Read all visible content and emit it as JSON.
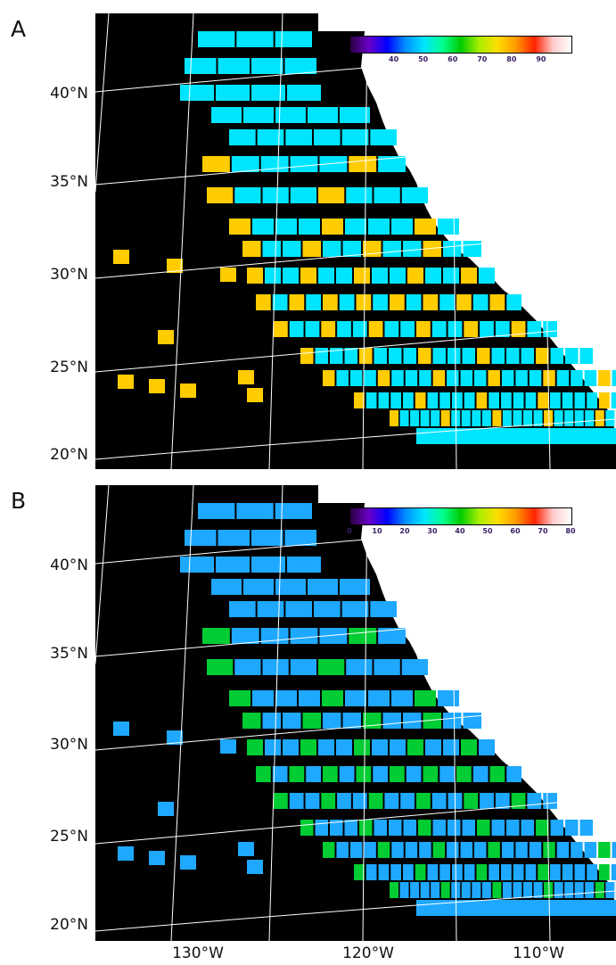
{
  "panels": [
    {
      "letter": "A",
      "colorbar": {
        "ticks": [
          "40",
          "50",
          "60",
          "70",
          "80",
          "90"
        ],
        "tick_values": [
          40,
          50,
          60,
          70,
          80,
          90
        ],
        "range": [
          25,
          100
        ]
      }
    },
    {
      "letter": "B",
      "colorbar": {
        "ticks": [
          "0",
          "10",
          "20",
          "30",
          "40",
          "50",
          "60",
          "70",
          "80"
        ],
        "tick_values": [
          0,
          10,
          20,
          30,
          40,
          50,
          60,
          70,
          80
        ],
        "range": [
          0,
          80
        ]
      }
    }
  ],
  "latitude_labels": [
    "40°N",
    "35°N",
    "30°N",
    "25°N",
    "20°N"
  ],
  "longitude_labels": [
    "130°W",
    "120°W",
    "110°W"
  ],
  "colorscale": [
    "#2a0040",
    "#6a00c8",
    "#0000ff",
    "#0090ff",
    "#00e5ff",
    "#00ff90",
    "#00cc00",
    "#aaee00",
    "#ffdd00",
    "#ff9900",
    "#ff2200",
    "#ffcccc",
    "#ffffff"
  ],
  "colors": {
    "land": "#ffffff",
    "ocean": "#000000",
    "grid": "#ffffff"
  }
}
